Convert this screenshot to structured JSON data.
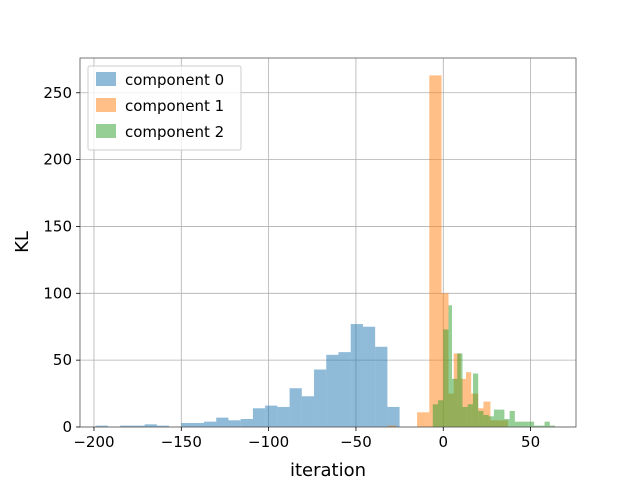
{
  "chart_data": {
    "type": "bar",
    "subtype": "histogram",
    "xlabel": "iteration",
    "ylabel": "KL",
    "xlim": [
      -208,
      76
    ],
    "ylim": [
      0,
      276
    ],
    "xticks": [
      -200,
      -150,
      -100,
      -50,
      0,
      50
    ],
    "xtick_labels": [
      "−200",
      "−150",
      "−100",
      "−50",
      "0",
      "50"
    ],
    "yticks": [
      0,
      50,
      100,
      150,
      200,
      250
    ],
    "ytick_labels": [
      "0",
      "50",
      "100",
      "150",
      "200",
      "250"
    ],
    "grid": true,
    "legend_position": "top-left",
    "series": [
      {
        "name": "component 0",
        "color": "#1f77b4",
        "alpha": 0.5,
        "bins": [
          {
            "x0": -199,
            "x1": -192,
            "value": 1
          },
          {
            "x0": -192,
            "x1": -185,
            "value": 0
          },
          {
            "x0": -185,
            "x1": -178,
            "value": 1
          },
          {
            "x0": -178,
            "x1": -171,
            "value": 1
          },
          {
            "x0": -171,
            "x1": -164,
            "value": 2
          },
          {
            "x0": -164,
            "x1": -157,
            "value": 1
          },
          {
            "x0": -157,
            "x1": -150,
            "value": 0
          },
          {
            "x0": -150,
            "x1": -137,
            "value": 3
          },
          {
            "x0": -137,
            "x1": -130,
            "value": 4
          },
          {
            "x0": -130,
            "x1": -123,
            "value": 7
          },
          {
            "x0": -123,
            "x1": -116,
            "value": 5
          },
          {
            "x0": -116,
            "x1": -109,
            "value": 6
          },
          {
            "x0": -109,
            "x1": -102,
            "value": 14
          },
          {
            "x0": -102,
            "x1": -95,
            "value": 16
          },
          {
            "x0": -95,
            "x1": -88,
            "value": 15
          },
          {
            "x0": -88,
            "x1": -81,
            "value": 29
          },
          {
            "x0": -81,
            "x1": -74,
            "value": 23
          },
          {
            "x0": -74,
            "x1": -67,
            "value": 43
          },
          {
            "x0": -67,
            "x1": -60,
            "value": 54
          },
          {
            "x0": -60,
            "x1": -53,
            "value": 56
          },
          {
            "x0": -53,
            "x1": -46,
            "value": 77
          },
          {
            "x0": -46,
            "x1": -39,
            "value": 75
          },
          {
            "x0": -39,
            "x1": -32,
            "value": 60
          },
          {
            "x0": -32,
            "x1": -25,
            "value": 15
          }
        ]
      },
      {
        "name": "component 1",
        "color": "#ff7f0e",
        "alpha": 0.5,
        "bins": [
          {
            "x0": -32,
            "x1": -27,
            "value": 1
          },
          {
            "x0": -15,
            "x1": -8,
            "value": 11
          },
          {
            "x0": -8,
            "x1": -1,
            "value": 263
          },
          {
            "x0": -1,
            "x1": 3,
            "value": 100
          },
          {
            "x0": 3,
            "x1": 6,
            "value": 25
          },
          {
            "x0": 6,
            "x1": 10,
            "value": 55
          },
          {
            "x0": 10,
            "x1": 13,
            "value": 36
          },
          {
            "x0": 13,
            "x1": 16,
            "value": 41
          },
          {
            "x0": 16,
            "x1": 20,
            "value": 25
          },
          {
            "x0": 20,
            "x1": 23,
            "value": 14
          },
          {
            "x0": 23,
            "x1": 27,
            "value": 19
          },
          {
            "x0": 27,
            "x1": 30,
            "value": 5
          },
          {
            "x0": 30,
            "x1": 33,
            "value": 5
          },
          {
            "x0": 33,
            "x1": 37,
            "value": 5
          }
        ]
      },
      {
        "name": "component 2",
        "color": "#2ca02c",
        "alpha": 0.5,
        "bins": [
          {
            "x0": -6,
            "x1": -3,
            "value": 17
          },
          {
            "x0": -3,
            "x1": 0,
            "value": 20
          },
          {
            "x0": 0,
            "x1": 3,
            "value": 73
          },
          {
            "x0": 3,
            "x1": 5,
            "value": 91
          },
          {
            "x0": 5,
            "x1": 8,
            "value": 36
          },
          {
            "x0": 8,
            "x1": 11,
            "value": 55
          },
          {
            "x0": 11,
            "x1": 14,
            "value": 15
          },
          {
            "x0": 14,
            "x1": 17,
            "value": 17
          },
          {
            "x0": 17,
            "x1": 20,
            "value": 40
          },
          {
            "x0": 20,
            "x1": 23,
            "value": 12
          },
          {
            "x0": 23,
            "x1": 26,
            "value": 9
          },
          {
            "x0": 26,
            "x1": 29,
            "value": 8
          },
          {
            "x0": 29,
            "x1": 32,
            "value": 13
          },
          {
            "x0": 32,
            "x1": 35,
            "value": 13
          },
          {
            "x0": 35,
            "x1": 38,
            "value": 6
          },
          {
            "x0": 38,
            "x1": 41,
            "value": 12
          },
          {
            "x0": 41,
            "x1": 49,
            "value": 4
          },
          {
            "x0": 49,
            "x1": 52,
            "value": 4
          },
          {
            "x0": 52,
            "x1": 55,
            "value": 1
          },
          {
            "x0": 55,
            "x1": 58,
            "value": 1
          },
          {
            "x0": 58,
            "x1": 61,
            "value": 4
          },
          {
            "x0": 61,
            "x1": 64,
            "value": 1
          }
        ]
      }
    ]
  }
}
